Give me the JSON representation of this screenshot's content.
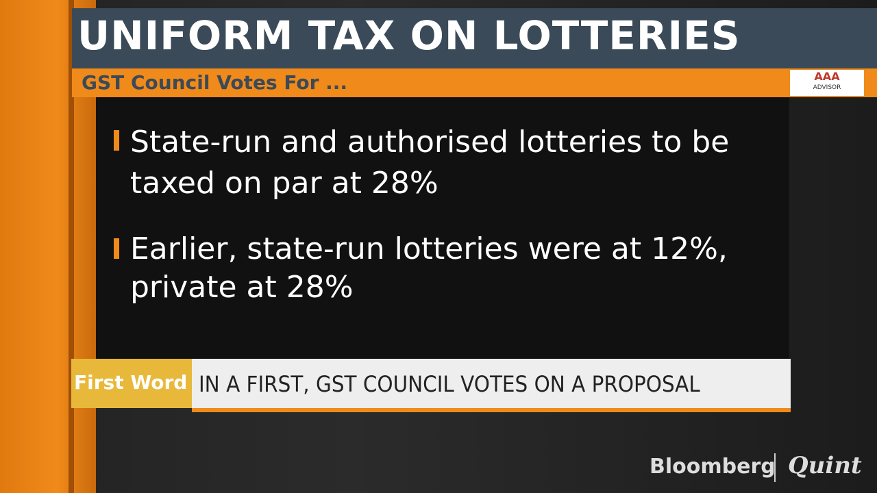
{
  "header": {
    "title": "UNIFORM TAX ON LOTTERIES",
    "subtitle": "GST Council Votes For ...",
    "logo": "AAA",
    "logo_sub": "ADVISOR"
  },
  "bullets": [
    "State-run and authorised lotteries to be taxed on par at 28%",
    "Earlier, state-run lotteries were at 12%, private at 28%"
  ],
  "ticker": {
    "tag": "First Word",
    "text": "IN A FIRST, GST COUNCIL VOTES ON A PROPOSAL"
  },
  "brand": {
    "left": "Bloomberg",
    "right": "Quint"
  }
}
